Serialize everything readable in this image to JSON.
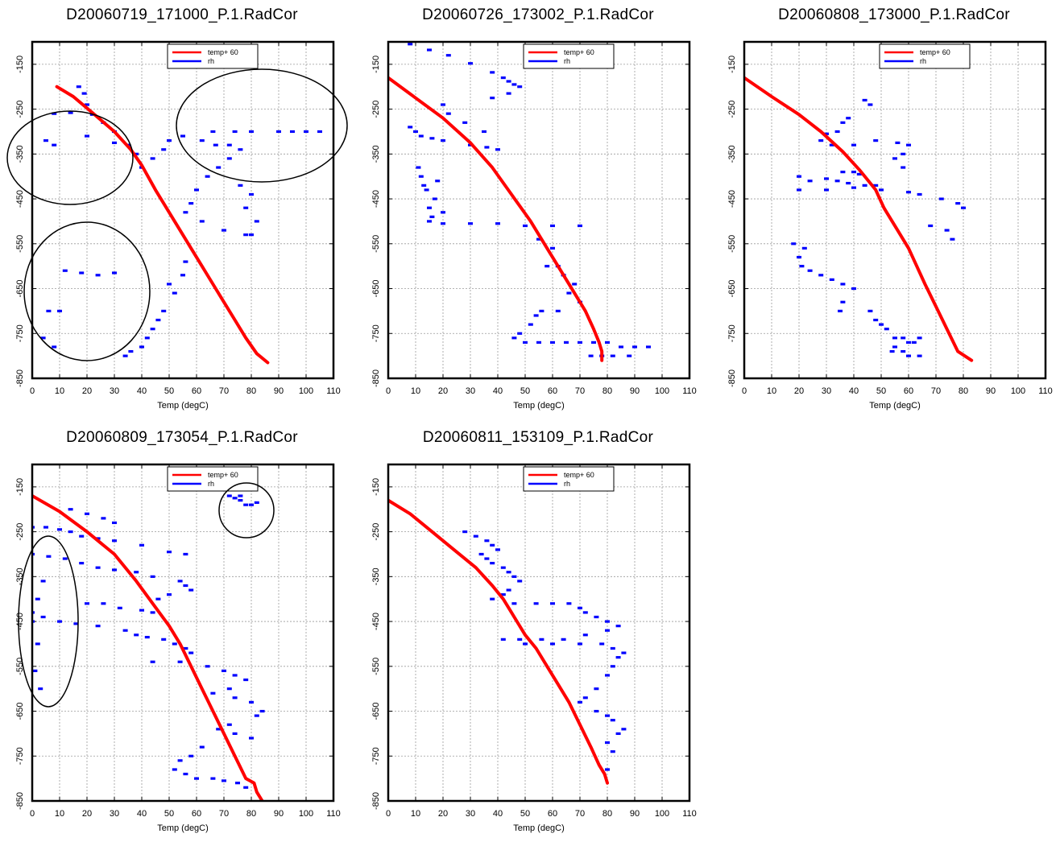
{
  "colors": {
    "temp": "#ff0000",
    "rh": "#0000ff",
    "grid": "#9a9a9a",
    "frame": "#000000",
    "annotation": "#000000"
  },
  "chart_data": [
    {
      "type": "scatter",
      "title": "D20060719_171000_P.1.RadCor",
      "xlabel": "Temp (degC)",
      "ylabel": "",
      "xlim": [
        0,
        110
      ],
      "ylim": [
        -850,
        -100
      ],
      "x_ticks": [
        "0",
        "10",
        "20",
        "30",
        "40",
        "50",
        "60",
        "70",
        "80",
        "90",
        "100",
        "110"
      ],
      "y_ticks": [
        "-150",
        "-250",
        "-350",
        "-450",
        "-550",
        "-650",
        "-750",
        "-850"
      ],
      "grid": true,
      "legend": {
        "position": "top-center",
        "entries": [
          "temp+ 60",
          "rh"
        ]
      },
      "series": [
        {
          "name": "temp+ 60",
          "kind": "line",
          "x": [
            9,
            15,
            22,
            30,
            36,
            40,
            45,
            50,
            55,
            58,
            62,
            66,
            70,
            74,
            78,
            82,
            86
          ],
          "y": [
            -200,
            -222,
            -258,
            -300,
            -340,
            -375,
            -430,
            -480,
            -530,
            -560,
            -600,
            -640,
            -680,
            -720,
            -760,
            -795,
            -815
          ]
        },
        {
          "name": "rh",
          "kind": "scatter",
          "x": [
            17,
            19,
            20,
            8,
            14,
            22,
            26,
            30,
            5,
            8,
            20,
            30,
            35,
            38,
            40,
            44,
            48,
            50,
            55,
            62,
            67,
            72,
            76,
            72,
            68,
            64,
            60,
            58,
            56,
            62,
            70,
            78,
            80,
            82,
            78,
            80,
            76,
            56,
            55,
            50,
            52,
            48,
            46,
            44,
            42,
            40,
            36,
            34,
            12,
            18,
            24,
            30,
            6,
            10,
            4,
            8,
            66,
            74,
            80,
            90,
            95,
            100,
            105
          ],
          "y": [
            -200,
            -215,
            -240,
            -260,
            -258,
            -262,
            -280,
            -300,
            -320,
            -330,
            -310,
            -325,
            -330,
            -350,
            -380,
            -360,
            -340,
            -320,
            -310,
            -320,
            -330,
            -330,
            -340,
            -360,
            -380,
            -400,
            -430,
            -460,
            -480,
            -500,
            -520,
            -530,
            -530,
            -500,
            -470,
            -440,
            -420,
            -590,
            -620,
            -640,
            -660,
            -700,
            -720,
            -740,
            -760,
            -780,
            -790,
            -800,
            -610,
            -615,
            -620,
            -615,
            -700,
            -700,
            -760,
            -780,
            -300,
            -300,
            -300,
            -300,
            -300,
            -300,
            -300
          ]
        }
      ],
      "annotations": [
        "ellipse",
        "ellipse",
        "ellipse"
      ]
    },
    {
      "type": "scatter",
      "title": "D20060726_173002_P.1.RadCor",
      "xlabel": "Temp (degC)",
      "ylabel": "",
      "xlim": [
        0,
        110
      ],
      "ylim": [
        -850,
        -100
      ],
      "x_ticks": [
        "0",
        "10",
        "20",
        "30",
        "40",
        "50",
        "60",
        "70",
        "80",
        "90",
        "100",
        "110"
      ],
      "y_ticks": [
        "-150",
        "-250",
        "-350",
        "-450",
        "-550",
        "-650",
        "-750",
        "-850"
      ],
      "grid": true,
      "legend": {
        "position": "top-center",
        "entries": [
          "temp+ 60",
          "rh"
        ]
      },
      "series": [
        {
          "name": "temp+ 60",
          "kind": "line",
          "x": [
            0,
            10,
            20,
            30,
            38,
            45,
            52,
            58,
            63,
            68,
            72,
            75,
            77,
            78,
            78
          ],
          "y": [
            -180,
            -225,
            -270,
            -325,
            -380,
            -440,
            -500,
            -560,
            -610,
            -660,
            -700,
            -740,
            -770,
            -790,
            -810
          ]
        },
        {
          "name": "rh",
          "kind": "scatter",
          "x": [
            8,
            15,
            22,
            30,
            38,
            42,
            44,
            46,
            48,
            44,
            38,
            20,
            22,
            28,
            35,
            8,
            10,
            12,
            16,
            20,
            30,
            36,
            40,
            11,
            12,
            13,
            18,
            14,
            17,
            15,
            20,
            16,
            15,
            20,
            30,
            40,
            50,
            60,
            70,
            55,
            60,
            58,
            62,
            64,
            68,
            66,
            70,
            62,
            56,
            54,
            52,
            48,
            46,
            50,
            55,
            60,
            65,
            70,
            75,
            80,
            85,
            90,
            95,
            74,
            78,
            82,
            88
          ],
          "y": [
            -105,
            -118,
            -130,
            -148,
            -168,
            -180,
            -188,
            -195,
            -200,
            -215,
            -225,
            -240,
            -260,
            -280,
            -300,
            -290,
            -300,
            -310,
            -315,
            -320,
            -330,
            -335,
            -340,
            -380,
            -400,
            -420,
            -410,
            -430,
            -450,
            -470,
            -480,
            -490,
            -500,
            -505,
            -505,
            -505,
            -510,
            -510,
            -510,
            -540,
            -560,
            -600,
            -600,
            -620,
            -640,
            -660,
            -680,
            -700,
            -700,
            -710,
            -730,
            -750,
            -760,
            -770,
            -770,
            -770,
            -770,
            -770,
            -770,
            -770,
            -780,
            -780,
            -780,
            -800,
            -800,
            -800,
            -800
          ]
        }
      ]
    },
    {
      "type": "scatter",
      "title": "D20060808_173000_P.1.RadCor",
      "xlabel": "Temp (degC)",
      "ylabel": "",
      "xlim": [
        0,
        110
      ],
      "ylim": [
        -850,
        -100
      ],
      "x_ticks": [
        "0",
        "10",
        "20",
        "30",
        "40",
        "50",
        "60",
        "70",
        "80",
        "90",
        "100",
        "110"
      ],
      "y_ticks": [
        "-150",
        "-250",
        "-350",
        "-450",
        "-550",
        "-650",
        "-750",
        "-850"
      ],
      "grid": true,
      "legend": {
        "position": "top-center",
        "entries": [
          "temp+ 60",
          "rh"
        ]
      },
      "series": [
        {
          "name": "temp+ 60",
          "kind": "line",
          "x": [
            0,
            10,
            20,
            28,
            36,
            42,
            48,
            51,
            52,
            56,
            60,
            63,
            66,
            70,
            74,
            78,
            83
          ],
          "y": [
            -180,
            -222,
            -262,
            -300,
            -345,
            -385,
            -430,
            -470,
            -480,
            -520,
            -560,
            -600,
            -640,
            -690,
            -740,
            -790,
            -810
          ]
        },
        {
          "name": "rh",
          "kind": "scatter",
          "x": [
            44,
            46,
            38,
            36,
            34,
            30,
            28,
            32,
            40,
            48,
            56,
            60,
            58,
            55,
            58,
            36,
            40,
            42,
            20,
            24,
            30,
            34,
            38,
            44,
            48,
            20,
            30,
            40,
            50,
            60,
            64,
            72,
            78,
            80,
            68,
            74,
            76,
            18,
            22,
            20,
            21,
            24,
            28,
            32,
            36,
            40,
            36,
            35,
            46,
            48,
            50,
            52,
            55,
            58,
            60,
            55,
            54,
            58,
            62,
            64,
            60,
            64
          ],
          "y": [
            -230,
            -240,
            -270,
            -280,
            -300,
            -305,
            -320,
            -330,
            -330,
            -320,
            -325,
            -330,
            -350,
            -360,
            -380,
            -390,
            -390,
            -395,
            -400,
            -410,
            -405,
            -410,
            -415,
            -420,
            -420,
            -430,
            -430,
            -425,
            -430,
            -435,
            -440,
            -450,
            -460,
            -470,
            -510,
            -520,
            -540,
            -550,
            -560,
            -580,
            -600,
            -610,
            -620,
            -630,
            -640,
            -650,
            -680,
            -700,
            -700,
            -720,
            -730,
            -740,
            -760,
            -760,
            -770,
            -780,
            -790,
            -790,
            -770,
            -760,
            -800,
            -800
          ]
        }
      ]
    },
    {
      "type": "scatter",
      "title": "D20060809_173054_P.1.RadCor",
      "xlabel": "Temp (degC)",
      "ylabel": "",
      "xlim": [
        0,
        110
      ],
      "ylim": [
        -850,
        -100
      ],
      "x_ticks": [
        "0",
        "10",
        "20",
        "30",
        "40",
        "50",
        "60",
        "70",
        "80",
        "90",
        "100",
        "110"
      ],
      "y_ticks": [
        "-150",
        "-250",
        "-350",
        "-450",
        "-550",
        "-650",
        "-750",
        "-850"
      ],
      "grid": true,
      "legend": {
        "position": "top-center",
        "entries": [
          "temp+ 60",
          "rh"
        ]
      },
      "series": [
        {
          "name": "temp+ 60",
          "kind": "line",
          "x": [
            0,
            10,
            20,
            30,
            38,
            44,
            50,
            54,
            58,
            62,
            66,
            70,
            74,
            78,
            81,
            82,
            84
          ],
          "y": [
            -170,
            -205,
            -250,
            -300,
            -360,
            -410,
            -460,
            -500,
            -550,
            -600,
            -650,
            -700,
            -750,
            -800,
            -810,
            -830,
            -850
          ]
        },
        {
          "name": "rh",
          "kind": "scatter",
          "x": [
            14,
            20,
            26,
            30,
            0,
            5,
            10,
            14,
            18,
            24,
            30,
            40,
            50,
            56,
            0,
            6,
            12,
            18,
            24,
            30,
            38,
            44,
            54,
            56,
            58,
            50,
            46,
            20,
            26,
            32,
            40,
            44,
            0,
            4,
            10,
            16,
            24,
            34,
            38,
            42,
            48,
            52,
            56,
            58,
            44,
            54,
            64,
            70,
            74,
            78,
            72,
            66,
            74,
            80,
            84,
            82,
            72,
            68,
            74,
            80,
            62,
            58,
            54,
            52,
            56,
            60,
            66,
            70,
            75,
            78,
            72,
            74,
            76,
            80,
            82,
            78,
            76,
            4,
            2,
            0,
            2,
            1,
            3
          ],
          "y": [
            -200,
            -210,
            -220,
            -230,
            -240,
            -240,
            -245,
            -250,
            -260,
            -265,
            -270,
            -280,
            -295,
            -300,
            -300,
            -305,
            -310,
            -320,
            -330,
            -335,
            -340,
            -350,
            -360,
            -370,
            -380,
            -390,
            -400,
            -410,
            -410,
            -420,
            -425,
            -430,
            -430,
            -440,
            -450,
            -455,
            -460,
            -470,
            -480,
            -485,
            -490,
            -500,
            -510,
            -520,
            -540,
            -540,
            -550,
            -560,
            -570,
            -580,
            -600,
            -610,
            -620,
            -630,
            -650,
            -660,
            -680,
            -690,
            -700,
            -710,
            -730,
            -750,
            -760,
            -780,
            -790,
            -800,
            -800,
            -805,
            -810,
            -820,
            -170,
            -175,
            -180,
            -190,
            -185,
            -190,
            -170,
            -360,
            -400,
            -450,
            -500,
            -560,
            -600
          ]
        }
      ],
      "annotations": [
        "ellipse",
        "ellipse"
      ]
    },
    {
      "type": "scatter",
      "title": "D20060811_153109_P.1.RadCor",
      "xlabel": "Temp (degC)",
      "ylabel": "",
      "xlim": [
        0,
        110
      ],
      "ylim": [
        -850,
        -100
      ],
      "x_ticks": [
        "0",
        "10",
        "20",
        "30",
        "40",
        "50",
        "60",
        "70",
        "80",
        "90",
        "100",
        "110"
      ],
      "y_ticks": [
        "-150",
        "-250",
        "-350",
        "-450",
        "-550",
        "-650",
        "-750",
        "-850"
      ],
      "grid": true,
      "legend": {
        "position": "top-center",
        "entries": [
          "temp+ 60",
          "rh"
        ]
      },
      "series": [
        {
          "name": "temp+ 60",
          "kind": "line",
          "x": [
            0,
            8,
            16,
            24,
            32,
            38,
            42,
            44,
            46,
            50,
            54,
            58,
            62,
            66,
            70,
            74,
            77,
            79,
            80
          ],
          "y": [
            -180,
            -210,
            -250,
            -290,
            -330,
            -370,
            -400,
            -420,
            -440,
            -480,
            -510,
            -550,
            -590,
            -630,
            -680,
            -730,
            -770,
            -790,
            -810
          ]
        },
        {
          "name": "rh",
          "kind": "scatter",
          "x": [
            28,
            32,
            36,
            38,
            40,
            34,
            36,
            38,
            42,
            44,
            46,
            48,
            44,
            42,
            38,
            46,
            54,
            60,
            66,
            70,
            72,
            76,
            80,
            84,
            80,
            72,
            64,
            56,
            48,
            42,
            50,
            60,
            70,
            78,
            82,
            86,
            84,
            82,
            80,
            76,
            72,
            70,
            76,
            80,
            82,
            86,
            84,
            80,
            82,
            80
          ],
          "y": [
            -250,
            -260,
            -270,
            -280,
            -290,
            -300,
            -310,
            -320,
            -330,
            -340,
            -350,
            -360,
            -380,
            -390,
            -400,
            -410,
            -410,
            -410,
            -410,
            -420,
            -430,
            -440,
            -450,
            -460,
            -470,
            -480,
            -490,
            -490,
            -490,
            -490,
            -500,
            -500,
            -500,
            -500,
            -510,
            -520,
            -530,
            -550,
            -570,
            -600,
            -620,
            -630,
            -650,
            -660,
            -670,
            -690,
            -700,
            -720,
            -740,
            -780
          ]
        }
      ]
    }
  ]
}
